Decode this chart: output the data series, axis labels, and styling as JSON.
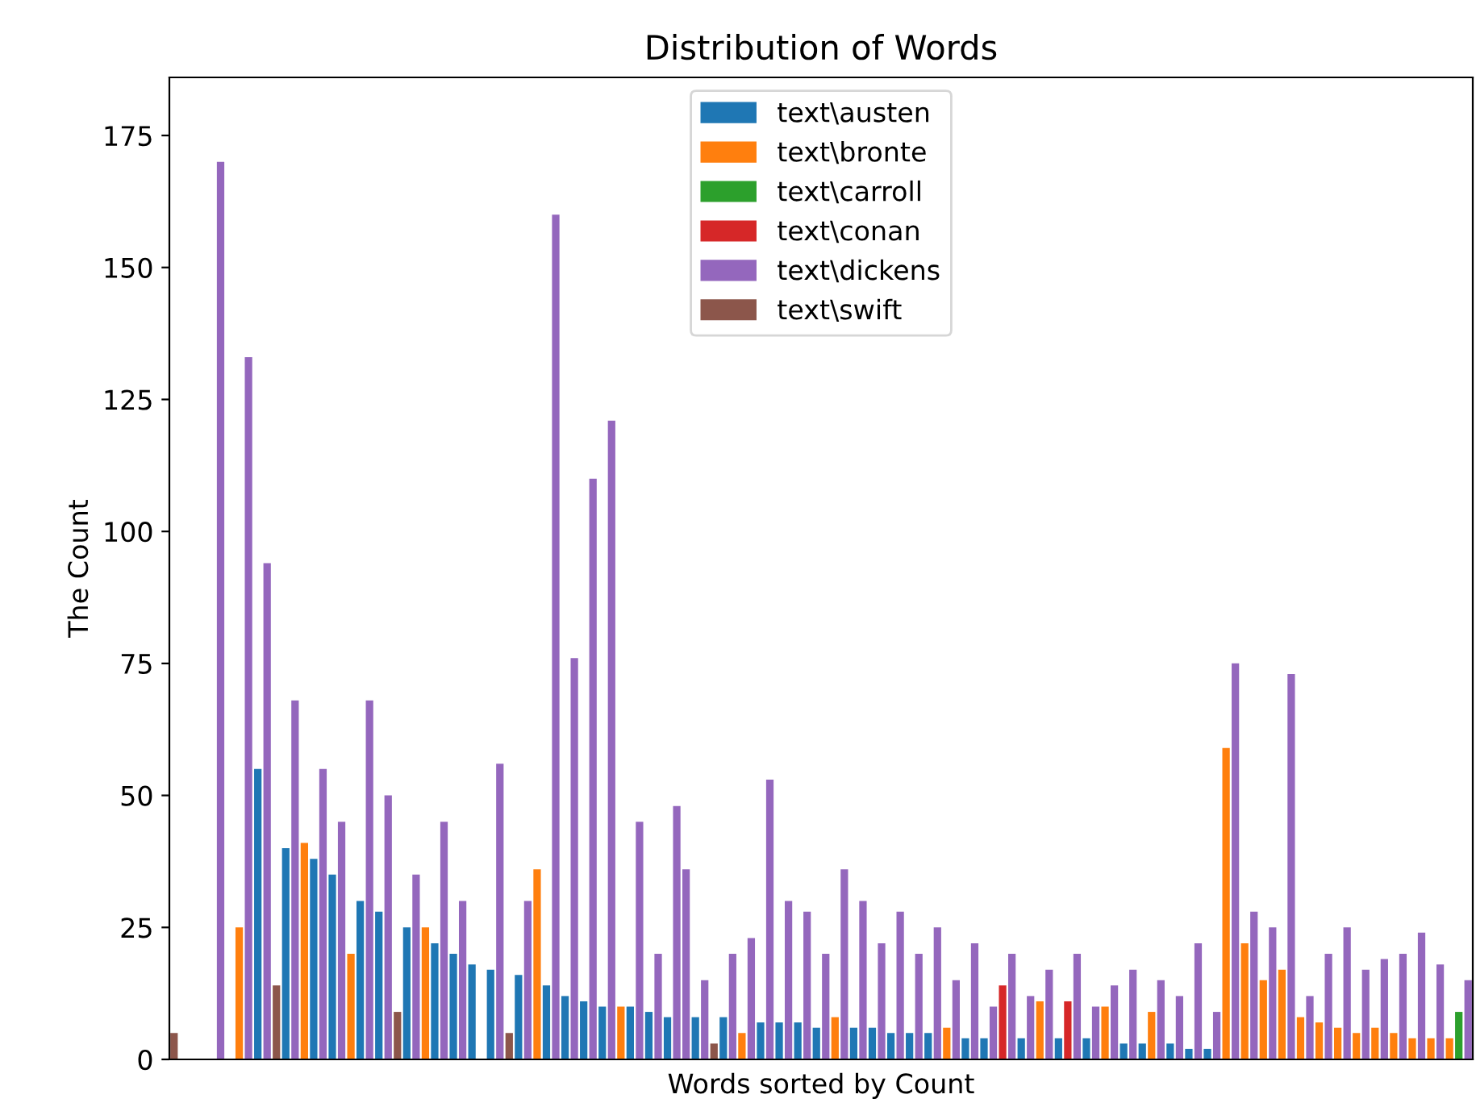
{
  "chart_data": {
    "type": "bar",
    "title": "Distribution of Words",
    "xlabel": "Words sorted by Count",
    "ylabel": "The Count",
    "categories": [
      null,
      null,
      null,
      null,
      null,
      null,
      null,
      null,
      null,
      null,
      null,
      null,
      null,
      null,
      null,
      null,
      null,
      null,
      null,
      null,
      null,
      null,
      null,
      null,
      null,
      null,
      null,
      null,
      null,
      null,
      null,
      null,
      null,
      null,
      null,
      null,
      null,
      null,
      null,
      null,
      null,
      null,
      null,
      null,
      null,
      null,
      null,
      null,
      null,
      null,
      null,
      null,
      null,
      null,
      null,
      null,
      null,
      null,
      null,
      null,
      null,
      null,
      null,
      null,
      null,
      null,
      null,
      null,
      null,
      null,
      null,
      null,
      null,
      null,
      null,
      null,
      null,
      null,
      null,
      null,
      null,
      null,
      null,
      null,
      null,
      null,
      null,
      null,
      null,
      null,
      null,
      null,
      null,
      null,
      null,
      null,
      null,
      null,
      null,
      null,
      null,
      null,
      null,
      null,
      null,
      null,
      null,
      null,
      null,
      null,
      null,
      null,
      null,
      null,
      null,
      null,
      null,
      null,
      null,
      null,
      null,
      null,
      null,
      null,
      null,
      null,
      null,
      null,
      null,
      null,
      null,
      null,
      null,
      null,
      null,
      null,
      null,
      null,
      null,
      null
    ],
    "series": [
      {
        "name": "text\\austen",
        "color": "#1f77b4",
        "values": [
          null,
          null,
          null,
          null,
          null,
          null,
          null,
          null,
          null,
          55,
          null,
          null,
          40,
          null,
          null,
          38,
          null,
          35,
          null,
          null,
          30,
          null,
          28,
          null,
          null,
          25,
          null,
          null,
          22,
          null,
          20,
          null,
          18,
          null,
          17,
          null,
          null,
          16,
          null,
          null,
          14,
          null,
          12,
          null,
          11,
          null,
          10,
          null,
          null,
          10,
          null,
          9,
          null,
          8,
          null,
          null,
          8,
          null,
          null,
          8,
          null,
          null,
          null,
          7,
          null,
          7,
          null,
          7,
          null,
          6,
          null,
          null,
          null,
          6,
          null,
          6,
          null,
          5,
          null,
          5,
          null,
          5,
          null,
          null,
          null,
          4,
          null,
          4,
          null,
          null,
          null,
          4,
          null,
          null,
          null,
          4,
          null,
          null,
          4,
          null,
          null,
          null,
          3,
          null,
          3,
          null,
          null,
          3,
          null,
          2,
          null,
          2,
          null,
          null,
          null,
          null,
          null,
          null,
          null,
          null,
          null,
          null,
          null,
          null,
          null,
          null,
          null,
          null,
          null,
          null,
          null,
          null,
          null,
          null,
          null,
          null,
          null,
          null,
          null,
          null
        ]
      },
      {
        "name": "text\\bronte",
        "color": "#ff7f0e",
        "values": [
          null,
          null,
          null,
          null,
          null,
          null,
          null,
          25,
          null,
          null,
          null,
          null,
          null,
          null,
          41,
          null,
          null,
          null,
          null,
          20,
          null,
          null,
          null,
          null,
          null,
          null,
          null,
          25,
          null,
          null,
          null,
          null,
          null,
          null,
          null,
          null,
          null,
          null,
          null,
          36,
          null,
          null,
          null,
          null,
          null,
          null,
          null,
          null,
          10,
          null,
          null,
          null,
          null,
          null,
          null,
          null,
          null,
          null,
          null,
          null,
          null,
          5,
          null,
          null,
          null,
          null,
          null,
          null,
          null,
          null,
          null,
          8,
          null,
          null,
          null,
          null,
          null,
          null,
          null,
          null,
          null,
          null,
          null,
          6,
          null,
          null,
          null,
          null,
          null,
          null,
          null,
          null,
          null,
          11,
          null,
          null,
          null,
          null,
          null,
          null,
          10,
          null,
          null,
          null,
          null,
          9,
          null,
          null,
          null,
          null,
          null,
          null,
          null,
          59,
          null,
          22,
          null,
          15,
          null,
          17,
          null,
          8,
          null,
          7,
          null,
          6,
          null,
          5,
          null,
          6,
          null,
          5,
          null,
          4,
          null,
          4,
          null,
          4,
          null,
          null
        ]
      },
      {
        "name": "text\\carroll",
        "color": "#2ca02c",
        "values": [
          null,
          null,
          null,
          null,
          null,
          null,
          null,
          null,
          null,
          null,
          null,
          null,
          null,
          null,
          null,
          null,
          null,
          null,
          null,
          null,
          null,
          null,
          null,
          null,
          null,
          null,
          null,
          null,
          null,
          null,
          null,
          null,
          null,
          null,
          null,
          null,
          null,
          null,
          null,
          null,
          null,
          null,
          null,
          null,
          null,
          null,
          null,
          null,
          null,
          null,
          null,
          null,
          null,
          null,
          null,
          null,
          null,
          null,
          null,
          null,
          null,
          null,
          null,
          null,
          null,
          null,
          null,
          null,
          null,
          null,
          null,
          null,
          null,
          null,
          null,
          null,
          null,
          null,
          null,
          null,
          null,
          null,
          null,
          null,
          null,
          null,
          null,
          null,
          null,
          null,
          null,
          null,
          null,
          null,
          null,
          null,
          null,
          null,
          null,
          null,
          null,
          null,
          null,
          null,
          null,
          null,
          null,
          null,
          null,
          null,
          null,
          null,
          null,
          null,
          null,
          null,
          null,
          null,
          null,
          null,
          null,
          null,
          null,
          null,
          null,
          null,
          null,
          null,
          null,
          null,
          null,
          null,
          null,
          null,
          null,
          null,
          null,
          null,
          9,
          null
        ]
      },
      {
        "name": "text\\conan",
        "color": "#d62728",
        "values": [
          null,
          null,
          null,
          null,
          null,
          null,
          null,
          null,
          null,
          null,
          null,
          null,
          null,
          null,
          null,
          null,
          null,
          null,
          null,
          null,
          null,
          null,
          null,
          null,
          null,
          null,
          null,
          null,
          null,
          null,
          null,
          null,
          null,
          null,
          null,
          null,
          null,
          null,
          null,
          null,
          null,
          null,
          null,
          null,
          null,
          null,
          null,
          null,
          null,
          null,
          null,
          null,
          null,
          null,
          null,
          null,
          null,
          null,
          null,
          null,
          null,
          null,
          null,
          null,
          null,
          null,
          null,
          null,
          null,
          null,
          null,
          null,
          null,
          null,
          null,
          null,
          null,
          null,
          null,
          null,
          null,
          null,
          null,
          null,
          null,
          null,
          null,
          null,
          null,
          14,
          null,
          null,
          null,
          null,
          null,
          null,
          11,
          null,
          null,
          null,
          null,
          null,
          null,
          null,
          null,
          null,
          null,
          null,
          null,
          null,
          null,
          null,
          null,
          null,
          null,
          null,
          null,
          null,
          null,
          null,
          null,
          null,
          null,
          null,
          null,
          null,
          null,
          null,
          null,
          null,
          null,
          null,
          null,
          null,
          null,
          null,
          null,
          null,
          null,
          null
        ]
      },
      {
        "name": "text\\dickens",
        "color": "#9467bd",
        "values": [
          null,
          null,
          null,
          null,
          null,
          170,
          null,
          null,
          133,
          null,
          94,
          null,
          null,
          68,
          null,
          null,
          55,
          null,
          45,
          null,
          null,
          68,
          null,
          50,
          null,
          null,
          35,
          null,
          null,
          45,
          null,
          30,
          null,
          null,
          null,
          56,
          null,
          null,
          30,
          null,
          null,
          160,
          null,
          76,
          null,
          110,
          null,
          121,
          null,
          null,
          45,
          null,
          20,
          null,
          48,
          36,
          null,
          15,
          null,
          null,
          20,
          null,
          23,
          null,
          53,
          null,
          30,
          null,
          28,
          null,
          20,
          null,
          36,
          null,
          30,
          null,
          22,
          null,
          28,
          null,
          20,
          null,
          25,
          null,
          15,
          null,
          22,
          null,
          10,
          null,
          20,
          null,
          12,
          null,
          17,
          null,
          null,
          20,
          null,
          10,
          null,
          14,
          null,
          17,
          null,
          null,
          15,
          null,
          12,
          null,
          22,
          null,
          9,
          null,
          75,
          null,
          28,
          null,
          25,
          null,
          73,
          null,
          12,
          null,
          20,
          null,
          25,
          null,
          17,
          null,
          19,
          null,
          20,
          null,
          24,
          null,
          18,
          null,
          null,
          15
        ]
      },
      {
        "name": "text\\swift",
        "color": "#8c564b",
        "values": [
          5,
          null,
          null,
          null,
          null,
          null,
          null,
          null,
          null,
          null,
          null,
          14,
          null,
          null,
          null,
          null,
          null,
          null,
          null,
          null,
          null,
          null,
          null,
          null,
          9,
          null,
          null,
          null,
          null,
          null,
          null,
          null,
          null,
          null,
          null,
          null,
          5,
          null,
          null,
          null,
          null,
          null,
          null,
          null,
          null,
          null,
          null,
          null,
          null,
          null,
          null,
          null,
          null,
          null,
          null,
          null,
          null,
          null,
          3,
          null,
          null,
          null,
          null,
          null,
          null,
          null,
          null,
          null,
          null,
          null,
          null,
          null,
          null,
          null,
          null,
          null,
          null,
          null,
          null,
          null,
          null,
          null,
          null,
          null,
          null,
          null,
          null,
          null,
          null,
          null,
          null,
          null,
          null,
          null,
          null,
          null,
          null,
          null,
          null,
          null,
          null,
          null,
          null,
          null,
          null,
          null,
          null,
          null,
          null,
          null,
          null,
          null,
          null,
          null,
          null,
          null,
          null,
          null,
          null,
          null,
          null,
          null,
          null,
          null,
          null,
          null,
          null,
          null,
          null,
          null,
          null,
          null,
          null,
          null,
          null,
          null,
          null,
          null,
          null,
          null
        ]
      }
    ],
    "ylim": [
      0,
      186
    ],
    "yticks": [
      0,
      25,
      50,
      75,
      100,
      125,
      150,
      175
    ],
    "tick_labels": "y",
    "legend": "top",
    "grid": false
  }
}
